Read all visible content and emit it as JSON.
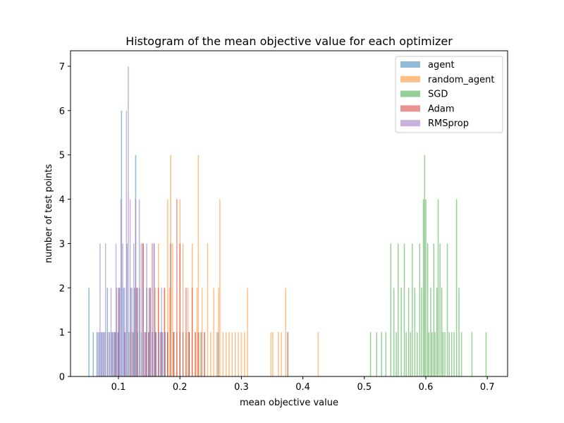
{
  "chart_data": {
    "type": "bar",
    "title": "Histogram of the mean objective value for each optimizer",
    "xlabel": "mean objective value",
    "ylabel": "number of test points",
    "xlim": [
      0.022,
      0.733
    ],
    "ylim": [
      0,
      7.35
    ],
    "xticks": [
      0.1,
      0.2,
      0.3,
      0.4,
      0.5,
      0.6,
      0.7
    ],
    "xtick_labels": [
      "0.1",
      "0.2",
      "0.3",
      "0.4",
      "0.5",
      "0.6",
      "0.7"
    ],
    "yticks": [
      0,
      1,
      2,
      3,
      4,
      5,
      6,
      7
    ],
    "ytick_labels": [
      "0",
      "1",
      "2",
      "3",
      "4",
      "5",
      "6",
      "7"
    ],
    "bar_width": 0.0017,
    "legend_position": "top-right",
    "grid": false,
    "series": [
      {
        "name": "agent",
        "color": "#1f77b4",
        "opacity": 0.5,
        "bins": [
          [
            0.052,
            2
          ],
          [
            0.059,
            1
          ],
          [
            0.065,
            1
          ],
          [
            0.069,
            1
          ],
          [
            0.072,
            1
          ],
          [
            0.075,
            1
          ],
          [
            0.078,
            1
          ],
          [
            0.082,
            2
          ],
          [
            0.085,
            1
          ],
          [
            0.088,
            1
          ],
          [
            0.091,
            1
          ],
          [
            0.094,
            1
          ],
          [
            0.097,
            2
          ],
          [
            0.1,
            1
          ],
          [
            0.102,
            2
          ],
          [
            0.105,
            6
          ],
          [
            0.108,
            2
          ],
          [
            0.111,
            1
          ],
          [
            0.114,
            3
          ],
          [
            0.117,
            1
          ],
          [
            0.12,
            2
          ],
          [
            0.123,
            1
          ],
          [
            0.126,
            2
          ],
          [
            0.128,
            5
          ],
          [
            0.131,
            1
          ],
          [
            0.134,
            2
          ],
          [
            0.137,
            1
          ],
          [
            0.14,
            3
          ],
          [
            0.143,
            1
          ],
          [
            0.146,
            2
          ],
          [
            0.149,
            1
          ],
          [
            0.152,
            2
          ],
          [
            0.155,
            1
          ],
          [
            0.158,
            3
          ],
          [
            0.161,
            1
          ],
          [
            0.165,
            1
          ],
          [
            0.168,
            1
          ],
          [
            0.172,
            1
          ],
          [
            0.176,
            1
          ],
          [
            0.18,
            1
          ],
          [
            0.19,
            1
          ],
          [
            0.2,
            1
          ],
          [
            0.215,
            1
          ],
          [
            0.235,
            1
          ],
          [
            0.262,
            1
          ],
          [
            0.375,
            1
          ]
        ]
      },
      {
        "name": "random_agent",
        "color": "#ff7f0e",
        "opacity": 0.5,
        "bins": [
          [
            0.12,
            1
          ],
          [
            0.13,
            2
          ],
          [
            0.14,
            3
          ],
          [
            0.15,
            1
          ],
          [
            0.16,
            2
          ],
          [
            0.165,
            3
          ],
          [
            0.17,
            1
          ],
          [
            0.175,
            2
          ],
          [
            0.18,
            4
          ],
          [
            0.183,
            2
          ],
          [
            0.185,
            5
          ],
          [
            0.188,
            3
          ],
          [
            0.19,
            1
          ],
          [
            0.195,
            1
          ],
          [
            0.2,
            4
          ],
          [
            0.205,
            3
          ],
          [
            0.21,
            1
          ],
          [
            0.213,
            2
          ],
          [
            0.215,
            1
          ],
          [
            0.22,
            3
          ],
          [
            0.225,
            1
          ],
          [
            0.228,
            2
          ],
          [
            0.23,
            5
          ],
          [
            0.233,
            1
          ],
          [
            0.236,
            2
          ],
          [
            0.24,
            1
          ],
          [
            0.245,
            3
          ],
          [
            0.25,
            1
          ],
          [
            0.255,
            2
          ],
          [
            0.26,
            1
          ],
          [
            0.263,
            2
          ],
          [
            0.265,
            4
          ],
          [
            0.27,
            1
          ],
          [
            0.275,
            1
          ],
          [
            0.28,
            1
          ],
          [
            0.285,
            1
          ],
          [
            0.29,
            1
          ],
          [
            0.295,
            1
          ],
          [
            0.3,
            1
          ],
          [
            0.305,
            1
          ],
          [
            0.31,
            2
          ],
          [
            0.348,
            1
          ],
          [
            0.351,
            1
          ],
          [
            0.36,
            1
          ],
          [
            0.365,
            1
          ],
          [
            0.372,
            2
          ],
          [
            0.376,
            1
          ],
          [
            0.425,
            1
          ]
        ]
      },
      {
        "name": "SGD",
        "color": "#2ca02c",
        "opacity": 0.5,
        "bins": [
          [
            0.51,
            1
          ],
          [
            0.52,
            1
          ],
          [
            0.528,
            1
          ],
          [
            0.535,
            1
          ],
          [
            0.543,
            3
          ],
          [
            0.548,
            2
          ],
          [
            0.552,
            1
          ],
          [
            0.555,
            3
          ],
          [
            0.56,
            2
          ],
          [
            0.565,
            3
          ],
          [
            0.568,
            1
          ],
          [
            0.572,
            2
          ],
          [
            0.575,
            1
          ],
          [
            0.578,
            3
          ],
          [
            0.582,
            2
          ],
          [
            0.586,
            1
          ],
          [
            0.59,
            3
          ],
          [
            0.593,
            2
          ],
          [
            0.596,
            4
          ],
          [
            0.598,
            5
          ],
          [
            0.6,
            4
          ],
          [
            0.603,
            3
          ],
          [
            0.605,
            1
          ],
          [
            0.608,
            2
          ],
          [
            0.61,
            1
          ],
          [
            0.613,
            3
          ],
          [
            0.615,
            1
          ],
          [
            0.618,
            2
          ],
          [
            0.62,
            4
          ],
          [
            0.623,
            3
          ],
          [
            0.626,
            2
          ],
          [
            0.628,
            1
          ],
          [
            0.631,
            1
          ],
          [
            0.635,
            3
          ],
          [
            0.638,
            1
          ],
          [
            0.642,
            1
          ],
          [
            0.646,
            1
          ],
          [
            0.65,
            4
          ],
          [
            0.654,
            2
          ],
          [
            0.658,
            1
          ],
          [
            0.675,
            1
          ],
          [
            0.698,
            1
          ]
        ]
      },
      {
        "name": "Adam",
        "color": "#d62728",
        "opacity": 0.5,
        "bins": [
          [
            0.095,
            1
          ],
          [
            0.1,
            2
          ],
          [
            0.11,
            1
          ],
          [
            0.125,
            1
          ],
          [
            0.13,
            2
          ],
          [
            0.14,
            3
          ],
          [
            0.145,
            1
          ],
          [
            0.15,
            2
          ],
          [
            0.155,
            3
          ],
          [
            0.16,
            1
          ],
          [
            0.165,
            2
          ],
          [
            0.17,
            1
          ],
          [
            0.175,
            2
          ],
          [
            0.18,
            1
          ],
          [
            0.185,
            3
          ],
          [
            0.19,
            1
          ],
          [
            0.195,
            4
          ],
          [
            0.2,
            3
          ],
          [
            0.205,
            1
          ],
          [
            0.21,
            2
          ],
          [
            0.215,
            1
          ],
          [
            0.22,
            2
          ],
          [
            0.225,
            1
          ],
          [
            0.23,
            1
          ],
          [
            0.24,
            1
          ]
        ]
      },
      {
        "name": "RMSprop",
        "color": "#9467bd",
        "opacity": 0.5,
        "bins": [
          [
            0.067,
            1
          ],
          [
            0.07,
            3
          ],
          [
            0.073,
            1
          ],
          [
            0.076,
            1
          ],
          [
            0.079,
            3
          ],
          [
            0.082,
            1
          ],
          [
            0.085,
            1
          ],
          [
            0.088,
            2
          ],
          [
            0.09,
            1
          ],
          [
            0.093,
            1
          ],
          [
            0.096,
            3
          ],
          [
            0.099,
            1
          ],
          [
            0.101,
            2
          ],
          [
            0.104,
            4
          ],
          [
            0.107,
            3
          ],
          [
            0.11,
            2
          ],
          [
            0.113,
            6
          ],
          [
            0.116,
            7
          ],
          [
            0.119,
            4
          ],
          [
            0.122,
            2
          ],
          [
            0.125,
            3
          ],
          [
            0.128,
            4
          ],
          [
            0.131,
            2
          ],
          [
            0.134,
            4
          ],
          [
            0.137,
            3
          ],
          [
            0.14,
            2
          ],
          [
            0.143,
            1
          ],
          [
            0.146,
            3
          ],
          [
            0.149,
            1
          ],
          [
            0.152,
            2
          ],
          [
            0.155,
            1
          ],
          [
            0.158,
            3
          ],
          [
            0.161,
            1
          ],
          [
            0.165,
            1
          ],
          [
            0.17,
            2
          ],
          [
            0.175,
            1
          ]
        ]
      }
    ]
  }
}
